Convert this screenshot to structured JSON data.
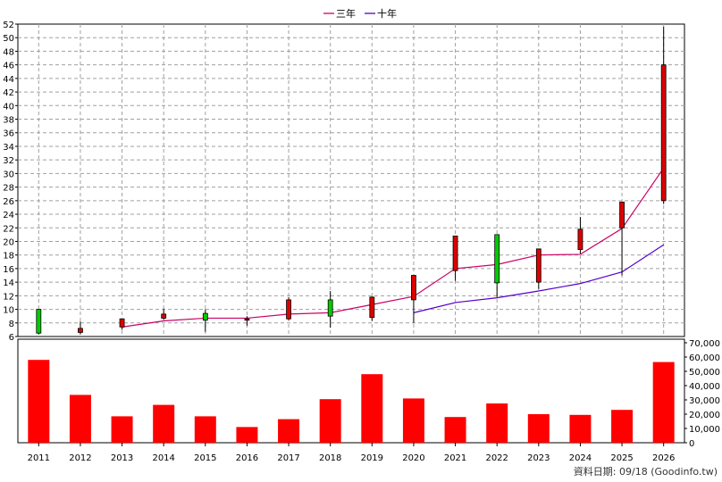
{
  "chart_data": {
    "type": "candlestick",
    "legend": [
      {
        "name": "三年",
        "color": "#cc0066"
      },
      {
        "name": "十年",
        "color": "#5500cc"
      }
    ],
    "x_labels": [
      "2011",
      "2012",
      "2013",
      "2014",
      "2015",
      "2016",
      "2017",
      "2018",
      "2019",
      "2020",
      "2021",
      "2022",
      "2023",
      "2024",
      "2025",
      "2026"
    ],
    "price_axis": {
      "min": 6,
      "max": 52,
      "step": 2
    },
    "volume_axis": {
      "min": 0,
      "max": 70000,
      "step": 10000,
      "labels": [
        "0",
        "10,000",
        "20,000",
        "30,000",
        "40,000",
        "50,000",
        "60,000",
        "70,000"
      ]
    },
    "candles": [
      {
        "year": "2011",
        "open": 6.5,
        "close": 10.0,
        "high": 10.0,
        "low": 6.3,
        "color": "green"
      },
      {
        "year": "2012",
        "open": 6.6,
        "close": 7.2,
        "high": 8.2,
        "low": 6.3,
        "color": "red"
      },
      {
        "year": "2013",
        "open": 7.4,
        "close": 8.6,
        "high": 8.6,
        "low": 7.0,
        "color": "red"
      },
      {
        "year": "2014",
        "open": 8.7,
        "close": 9.3,
        "high": 10.1,
        "low": 8.5,
        "color": "red"
      },
      {
        "year": "2015",
        "open": 9.4,
        "close": 8.4,
        "high": 10.0,
        "low": 6.7,
        "color": "green"
      },
      {
        "year": "2016",
        "open": 8.4,
        "close": 8.6,
        "high": 9.0,
        "low": 7.6,
        "color": "red"
      },
      {
        "year": "2017",
        "open": 8.6,
        "close": 11.4,
        "high": 11.8,
        "low": 8.4,
        "color": "red"
      },
      {
        "year": "2018",
        "open": 11.4,
        "close": 9.0,
        "high": 12.7,
        "low": 7.3,
        "color": "green"
      },
      {
        "year": "2019",
        "open": 8.8,
        "close": 11.8,
        "high": 11.9,
        "low": 8.3,
        "color": "red"
      },
      {
        "year": "2020",
        "open": 11.4,
        "close": 15.0,
        "high": 15.0,
        "low": 8.0,
        "color": "red"
      },
      {
        "year": "2021",
        "open": 15.7,
        "close": 20.8,
        "high": 20.8,
        "low": 14.2,
        "color": "red"
      },
      {
        "year": "2022",
        "open": 21.0,
        "close": 13.9,
        "high": 21.0,
        "low": 11.8,
        "color": "green"
      },
      {
        "year": "2023",
        "open": 14.0,
        "close": 18.9,
        "high": 18.9,
        "low": 13.0,
        "color": "red"
      },
      {
        "year": "2024",
        "open": 18.8,
        "close": 21.8,
        "high": 23.6,
        "low": 18.2,
        "color": "red"
      },
      {
        "year": "2025",
        "open": 22.0,
        "close": 25.8,
        "high": 25.8,
        "low": 15.0,
        "color": "red"
      },
      {
        "year": "2026",
        "open": 26.0,
        "close": 46.0,
        "high": 51.6,
        "low": 25.5,
        "color": "red"
      }
    ],
    "series": [
      {
        "name": "三年",
        "color": "#cc0066",
        "points": [
          [
            2,
            7.4
          ],
          [
            3,
            8.3
          ],
          [
            4,
            8.7
          ],
          [
            5,
            8.7
          ],
          [
            6,
            9.3
          ],
          [
            7,
            9.5
          ],
          [
            8,
            10.7
          ],
          [
            9,
            11.9
          ],
          [
            10,
            16.0
          ],
          [
            11,
            16.6
          ],
          [
            12,
            18.0
          ],
          [
            13,
            18.1
          ],
          [
            14,
            21.9
          ],
          [
            15,
            30.8
          ]
        ]
      },
      {
        "name": "十年",
        "color": "#5500cc",
        "points": [
          [
            9,
            9.5
          ],
          [
            10,
            11.0
          ],
          [
            11,
            11.7
          ],
          [
            12,
            12.7
          ],
          [
            13,
            13.8
          ],
          [
            14,
            15.5
          ],
          [
            15,
            19.5
          ]
        ]
      }
    ],
    "volumes": [
      58000,
      33500,
      18500,
      26500,
      18500,
      11000,
      16500,
      30500,
      48000,
      31000,
      18000,
      27500,
      20000,
      19500,
      23000,
      56500
    ]
  },
  "footer": {
    "text": "資料日期: 09/18 (Goodinfo.tw)"
  }
}
